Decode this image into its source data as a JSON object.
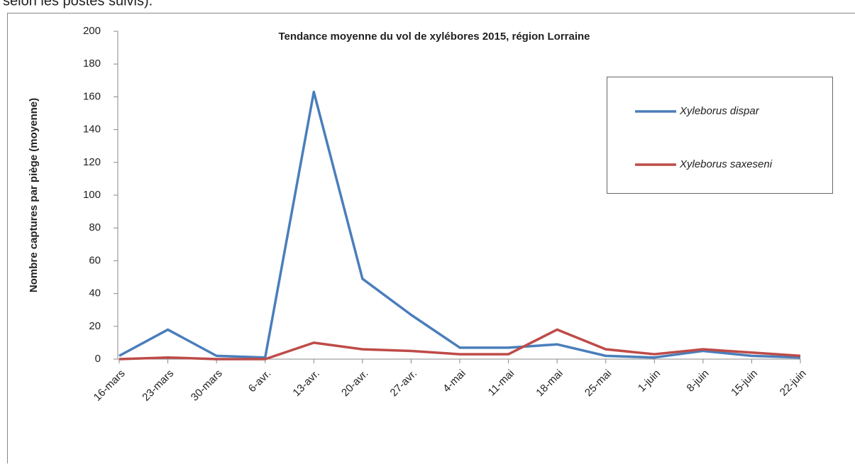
{
  "header": {
    "text": "selon les postes suivis)."
  },
  "chart_data": {
    "type": "line",
    "title": "Tendance moyenne du vol de xylébores 2015, région Lorraine",
    "y_label": "Nombre captures par piège (moyenne)",
    "categories": [
      "16-mars",
      "23-mars",
      "30-mars",
      "6-avr.",
      "13-avr.",
      "20-avr.",
      "27-avr.",
      "4-mai",
      "11-mai",
      "18-mai",
      "25-mai",
      "1-juin",
      "8-juin",
      "15-juin",
      "22-juin"
    ],
    "series": [
      {
        "name": "Xyleborus dispar",
        "color": "#4a7ebb",
        "values": [
          2,
          18,
          2,
          1,
          163,
          49,
          27,
          7,
          7,
          9,
          2,
          1,
          5,
          2,
          1
        ]
      },
      {
        "name": "Xyleborus saxeseni",
        "color": "#be4b48",
        "values": [
          0,
          1,
          0,
          0,
          10,
          6,
          5,
          3,
          3,
          18,
          6,
          3,
          6,
          4,
          2
        ]
      }
    ],
    "ylim": [
      0,
      200
    ],
    "yticks": [
      0,
      20,
      40,
      60,
      80,
      100,
      120,
      140,
      160,
      180,
      200
    ],
    "grid": false,
    "legend": "upper right"
  }
}
